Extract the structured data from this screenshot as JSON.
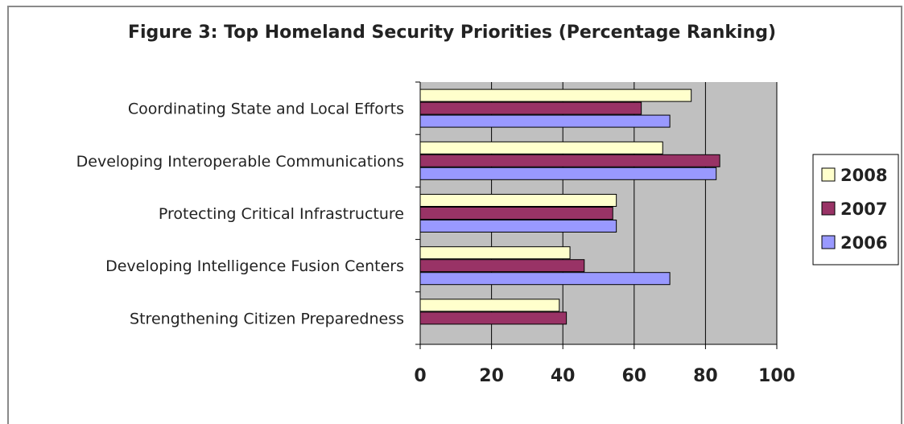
{
  "chart_data": {
    "type": "bar",
    "orientation": "horizontal",
    "title": "Figure 3: Top Homeland Security Priorities (Percentage Ranking)",
    "categories": [
      "Coordinating State and Local Efforts",
      "Developing Interoperable Communications",
      "Protecting Critical Infrastructure",
      "Developing Intelligence Fusion Centers",
      "Strengthening Citizen Preparedness"
    ],
    "series": [
      {
        "name": "2008",
        "color": "#ffffcc",
        "values": [
          76,
          68,
          55,
          42,
          39
        ]
      },
      {
        "name": "2007",
        "color": "#993366",
        "values": [
          62,
          84,
          54,
          46,
          41
        ]
      },
      {
        "name": "2006",
        "color": "#9999ff",
        "values": [
          70,
          83,
          55,
          70,
          null
        ]
      }
    ],
    "xlim": [
      0,
      100
    ],
    "xticks": [
      "0",
      "20",
      "40",
      "60",
      "80",
      "100"
    ],
    "grid": true,
    "plot_background": "#c0c0c0",
    "legend_position": "right"
  }
}
